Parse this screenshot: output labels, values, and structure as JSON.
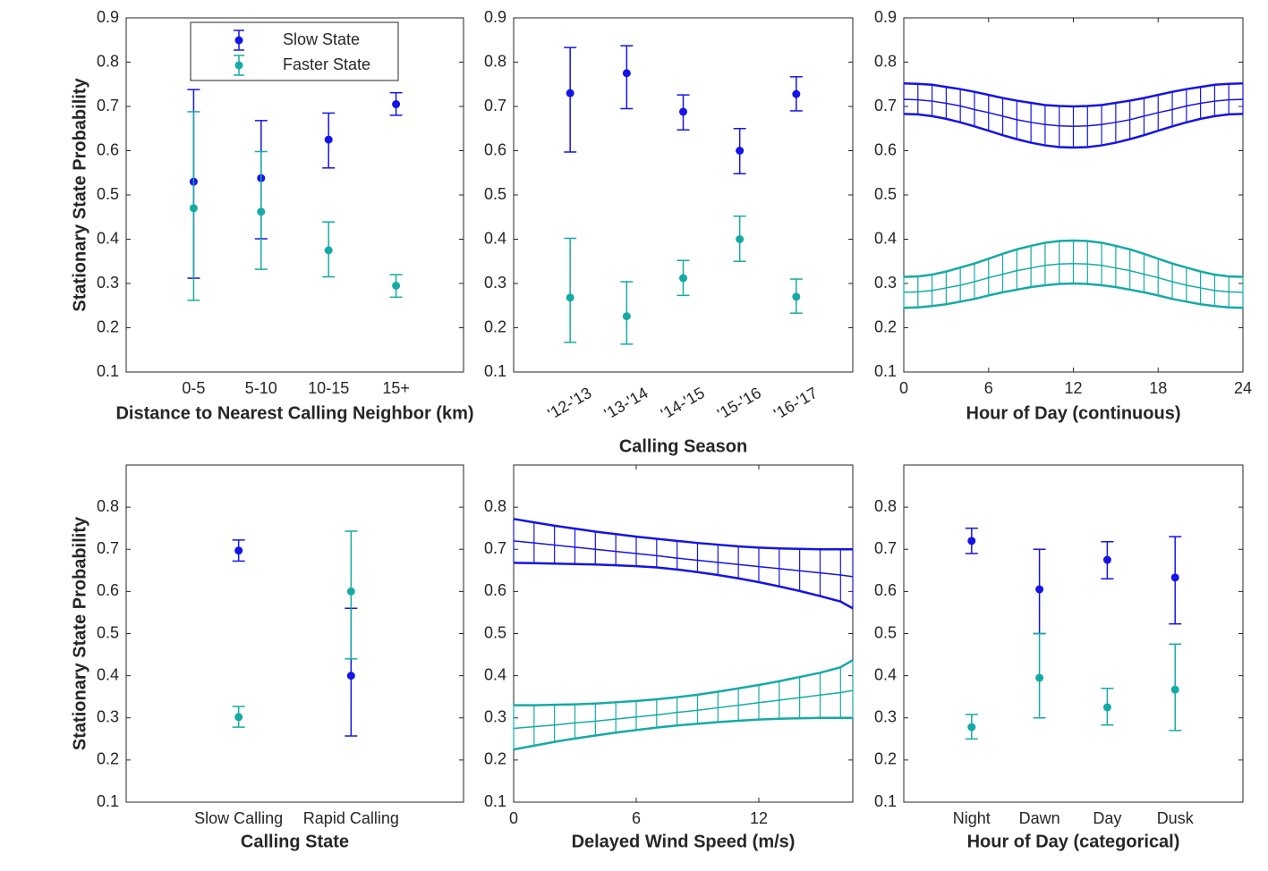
{
  "chart_data": [
    {
      "type": "errorbar",
      "ylabel": "Stationary State Probability",
      "xlabel": "Distance to Nearest Calling Neighbor (km)",
      "categories": [
        "0-5",
        "5-10",
        "10-15",
        "15+"
      ],
      "ylim": [
        0.1,
        0.9
      ],
      "yticks": [
        0.1,
        0.2,
        0.3,
        0.4,
        0.5,
        0.6,
        0.7,
        0.8,
        0.9
      ],
      "legend": "upper center",
      "series": [
        {
          "name": "Slow State",
          "color": "#1414e6",
          "values": [
            0.53,
            0.538,
            0.625,
            0.705
          ],
          "lower": [
            0.312,
            0.401,
            0.561,
            0.68
          ],
          "upper": [
            0.738,
            0.668,
            0.685,
            0.731
          ]
        },
        {
          "name": "Faster State",
          "color": "#16aaa6",
          "values": [
            0.47,
            0.462,
            0.375,
            0.295
          ],
          "lower": [
            0.262,
            0.332,
            0.315,
            0.269
          ],
          "upper": [
            0.688,
            0.598,
            0.439,
            0.32
          ]
        }
      ]
    },
    {
      "type": "errorbar",
      "xlabel": "Calling Season",
      "categories": [
        "'12-'13",
        "'13-'14",
        "'14-'15",
        "'15-'16",
        "'16-'17"
      ],
      "ylim": [
        0.1,
        0.9
      ],
      "yticks": [
        0.1,
        0.2,
        0.3,
        0.4,
        0.5,
        0.6,
        0.7,
        0.8,
        0.9
      ],
      "series": [
        {
          "color": "#1414e6",
          "values": [
            0.73,
            0.775,
            0.688,
            0.6,
            0.728
          ],
          "lower": [
            0.597,
            0.695,
            0.647,
            0.548,
            0.69
          ],
          "upper": [
            0.833,
            0.837,
            0.726,
            0.65,
            0.767
          ]
        },
        {
          "color": "#16aaa6",
          "values": [
            0.268,
            0.226,
            0.312,
            0.4,
            0.27
          ],
          "lower": [
            0.167,
            0.163,
            0.273,
            0.35,
            0.233
          ],
          "upper": [
            0.402,
            0.304,
            0.352,
            0.452,
            0.31
          ]
        }
      ]
    },
    {
      "type": "line",
      "xlabel": "Hour of Day (continuous)",
      "xlim": [
        0,
        24
      ],
      "xticks": [
        0,
        6,
        12,
        18,
        24
      ],
      "ylim": [
        0.1,
        0.9
      ],
      "yticks": [
        0.1,
        0.2,
        0.3,
        0.4,
        0.5,
        0.6,
        0.7,
        0.8,
        0.9
      ],
      "x": [
        0,
        1,
        2,
        3,
        4,
        5,
        6,
        7,
        8,
        9,
        10,
        11,
        12,
        13,
        14,
        15,
        16,
        17,
        18,
        19,
        20,
        21,
        22,
        23,
        24
      ],
      "series": [
        {
          "color": "#1414e6",
          "values": [
            0.716,
            0.715,
            0.712,
            0.707,
            0.701,
            0.693,
            0.686,
            0.678,
            0.67,
            0.664,
            0.659,
            0.656,
            0.655,
            0.656,
            0.659,
            0.664,
            0.67,
            0.678,
            0.686,
            0.693,
            0.701,
            0.707,
            0.712,
            0.715,
            0.716
          ],
          "upper": [
            0.752,
            0.751,
            0.749,
            0.744,
            0.739,
            0.733,
            0.726,
            0.719,
            0.713,
            0.708,
            0.703,
            0.701,
            0.7,
            0.701,
            0.703,
            0.708,
            0.713,
            0.719,
            0.726,
            0.733,
            0.739,
            0.744,
            0.749,
            0.751,
            0.752
          ],
          "lower": [
            0.683,
            0.682,
            0.678,
            0.672,
            0.664,
            0.655,
            0.645,
            0.635,
            0.626,
            0.618,
            0.612,
            0.608,
            0.607,
            0.608,
            0.612,
            0.618,
            0.626,
            0.635,
            0.645,
            0.655,
            0.664,
            0.672,
            0.678,
            0.682,
            0.683
          ]
        },
        {
          "color": "#16aaa6",
          "values": [
            0.28,
            0.281,
            0.284,
            0.29,
            0.296,
            0.304,
            0.313,
            0.321,
            0.329,
            0.335,
            0.341,
            0.344,
            0.345,
            0.344,
            0.341,
            0.335,
            0.329,
            0.321,
            0.313,
            0.304,
            0.296,
            0.29,
            0.284,
            0.281,
            0.28
          ],
          "upper": [
            0.315,
            0.316,
            0.32,
            0.327,
            0.336,
            0.345,
            0.356,
            0.367,
            0.377,
            0.385,
            0.392,
            0.396,
            0.397,
            0.396,
            0.392,
            0.385,
            0.377,
            0.367,
            0.356,
            0.345,
            0.336,
            0.327,
            0.32,
            0.316,
            0.315
          ],
          "lower": [
            0.245,
            0.246,
            0.249,
            0.253,
            0.259,
            0.265,
            0.273,
            0.28,
            0.286,
            0.292,
            0.296,
            0.299,
            0.3,
            0.299,
            0.296,
            0.292,
            0.286,
            0.28,
            0.273,
            0.265,
            0.259,
            0.253,
            0.249,
            0.246,
            0.245
          ]
        }
      ]
    },
    {
      "type": "errorbar",
      "ylabel": "Stationary State Probability",
      "xlabel": "Calling State",
      "categories": [
        "Slow Calling",
        "Rapid Calling"
      ],
      "ylim": [
        0.1,
        0.9
      ],
      "yticks": [
        0.1,
        0.2,
        0.3,
        0.4,
        0.5,
        0.6,
        0.7,
        0.8
      ],
      "series": [
        {
          "color": "#1414e6",
          "values": [
            0.697,
            0.4
          ],
          "lower": [
            0.672,
            0.257
          ],
          "upper": [
            0.722,
            0.56
          ]
        },
        {
          "color": "#16aaa6",
          "values": [
            0.302,
            0.6
          ],
          "lower": [
            0.278,
            0.44
          ],
          "upper": [
            0.327,
            0.743
          ]
        }
      ]
    },
    {
      "type": "line",
      "xlabel": "Delayed Wind Speed (m/s)",
      "xlim": [
        0,
        16.6
      ],
      "xticks": [
        0,
        6,
        12
      ],
      "ylim": [
        0.1,
        0.9
      ],
      "yticks": [
        0.1,
        0.2,
        0.3,
        0.4,
        0.5,
        0.6,
        0.7,
        0.8
      ],
      "x": [
        0,
        1,
        2,
        3,
        4,
        5,
        6,
        7,
        8,
        9,
        10,
        11,
        12,
        13,
        14,
        15,
        16,
        16.6
      ],
      "series": [
        {
          "color": "#1414e6",
          "values": [
            0.72,
            0.715,
            0.71,
            0.705,
            0.7,
            0.695,
            0.69,
            0.685,
            0.679,
            0.674,
            0.669,
            0.664,
            0.659,
            0.654,
            0.649,
            0.644,
            0.639,
            0.635
          ],
          "upper": [
            0.772,
            0.764,
            0.756,
            0.749,
            0.742,
            0.736,
            0.73,
            0.725,
            0.72,
            0.715,
            0.711,
            0.707,
            0.704,
            0.702,
            0.701,
            0.7,
            0.7,
            0.7
          ],
          "lower": [
            0.668,
            0.667,
            0.666,
            0.665,
            0.664,
            0.662,
            0.66,
            0.657,
            0.652,
            0.646,
            0.639,
            0.631,
            0.622,
            0.612,
            0.601,
            0.589,
            0.576,
            0.56
          ]
        },
        {
          "color": "#16aaa6",
          "values": [
            0.275,
            0.279,
            0.283,
            0.288,
            0.292,
            0.297,
            0.302,
            0.307,
            0.313,
            0.318,
            0.324,
            0.33,
            0.336,
            0.342,
            0.348,
            0.354,
            0.36,
            0.365
          ],
          "upper": [
            0.33,
            0.33,
            0.331,
            0.332,
            0.334,
            0.337,
            0.34,
            0.344,
            0.349,
            0.355,
            0.362,
            0.37,
            0.378,
            0.387,
            0.397,
            0.407,
            0.42,
            0.437
          ],
          "lower": [
            0.225,
            0.234,
            0.243,
            0.251,
            0.258,
            0.265,
            0.271,
            0.277,
            0.282,
            0.286,
            0.29,
            0.293,
            0.296,
            0.298,
            0.299,
            0.3,
            0.3,
            0.3
          ]
        }
      ]
    },
    {
      "type": "errorbar",
      "xlabel": "Hour of Day (categorical)",
      "categories": [
        "Night",
        "Dawn",
        "Day",
        "Dusk"
      ],
      "ylim": [
        0.1,
        0.9
      ],
      "yticks": [
        0.1,
        0.2,
        0.3,
        0.4,
        0.5,
        0.6,
        0.7,
        0.8
      ],
      "series": [
        {
          "color": "#1414e6",
          "values": [
            0.72,
            0.605,
            0.675,
            0.633
          ],
          "lower": [
            0.69,
            0.5,
            0.63,
            0.523
          ],
          "upper": [
            0.75,
            0.7,
            0.718,
            0.73
          ]
        },
        {
          "color": "#16aaa6",
          "values": [
            0.278,
            0.395,
            0.325,
            0.367
          ],
          "lower": [
            0.25,
            0.3,
            0.283,
            0.27
          ],
          "upper": [
            0.308,
            0.5,
            0.37,
            0.475
          ]
        }
      ]
    }
  ]
}
